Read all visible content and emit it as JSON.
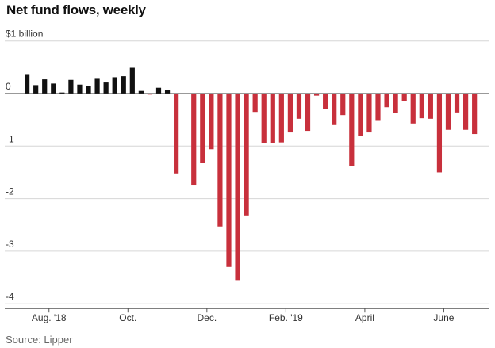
{
  "title": "Net fund flows, weekly",
  "source": "Source: Lipper",
  "colors": {
    "positive": "#111111",
    "negative": "#c8303c",
    "grid": "#d6d6d6",
    "zero": "#333333"
  },
  "chart_data": {
    "type": "bar",
    "title": "Net fund flows, weekly",
    "ylabel": "$1 billion",
    "ylim": [
      -4,
      1
    ],
    "yticks": [
      {
        "value": 1,
        "label": "$1 billion"
      },
      {
        "value": 0,
        "label": "0"
      },
      {
        "value": -1,
        "label": "-1"
      },
      {
        "value": -2,
        "label": "-2"
      },
      {
        "value": -3,
        "label": "-3"
      },
      {
        "value": -4,
        "label": "-4"
      }
    ],
    "xticks": [
      {
        "index": 2.5,
        "label": "Aug. '18"
      },
      {
        "index": 11.5,
        "label": "Oct."
      },
      {
        "index": 20.5,
        "label": "Dec."
      },
      {
        "index": 29.5,
        "label": "Feb. '19"
      },
      {
        "index": 38.5,
        "label": "April"
      },
      {
        "index": 47.5,
        "label": "June"
      }
    ],
    "grid": true,
    "values": [
      0.37,
      0.16,
      0.27,
      0.19,
      0.02,
      0.26,
      0.17,
      0.15,
      0.28,
      0.21,
      0.31,
      0.33,
      0.49,
      0.05,
      -0.02,
      0.11,
      0.06,
      -1.52,
      -0.01,
      -1.75,
      -1.32,
      -1.06,
      -2.53,
      -3.3,
      -3.55,
      -2.32,
      -0.35,
      -0.95,
      -0.95,
      -0.93,
      -0.74,
      -0.48,
      -0.71,
      -0.04,
      -0.3,
      -0.6,
      -0.41,
      -1.38,
      -0.81,
      -0.74,
      -0.52,
      -0.26,
      -0.37,
      -0.15,
      -0.57,
      -0.47,
      -0.48,
      -1.5,
      -0.69,
      -0.36,
      -0.69,
      -0.77
    ]
  }
}
